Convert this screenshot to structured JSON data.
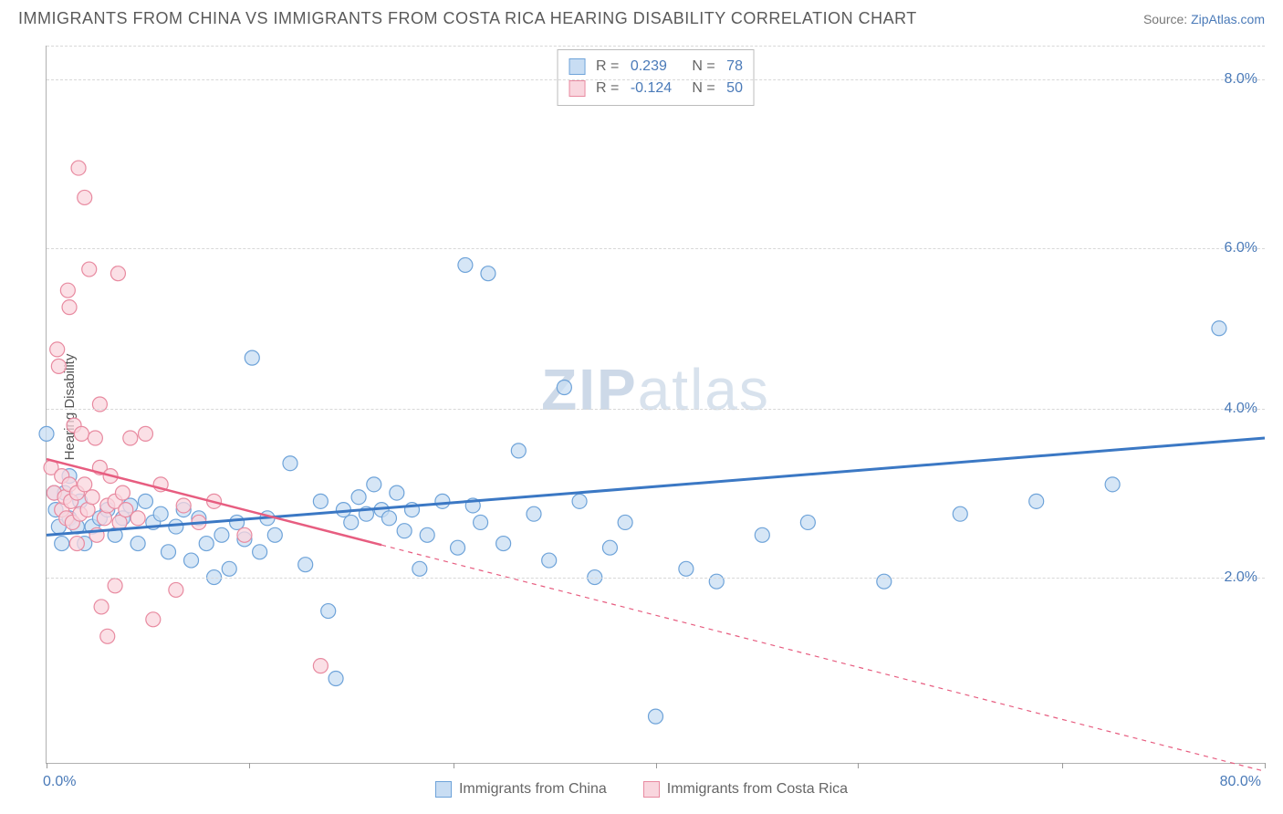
{
  "title": "IMMIGRANTS FROM CHINA VS IMMIGRANTS FROM COSTA RICA HEARING DISABILITY CORRELATION CHART",
  "source_prefix": "Source: ",
  "source_link": "ZipAtlas.com",
  "y_axis_label": "Hearing Disability",
  "watermark": {
    "bold": "ZIP",
    "rest": "atlas"
  },
  "chart": {
    "type": "scatter-with-regression",
    "xlim": [
      0,
      80
    ],
    "ylim": [
      0,
      8.5
    ],
    "x_ticks": [
      0,
      13.3,
      26.7,
      40,
      53.3,
      66.7,
      80
    ],
    "x_tick_labels_shown": {
      "0": "0.0%",
      "80": "80.0%"
    },
    "y_gridlines": [
      2.2,
      4.2,
      6.1,
      8.1
    ],
    "y_tick_labels": {
      "2.2": "2.0%",
      "4.2": "4.0%",
      "6.1": "6.0%",
      "8.1": "8.0%"
    },
    "background_color": "#ffffff",
    "grid_color": "#d8d8d8",
    "axis_color": "#b0b0b0",
    "tick_label_color": "#4a7ab8",
    "marker_radius": 8,
    "marker_stroke_width": 1.2,
    "series": [
      {
        "name": "Immigrants from China",
        "fill": "#c8ddf3",
        "stroke": "#6ea3d9",
        "line_color": "#3b78c4",
        "line_width": 3,
        "dash_after_x": null,
        "R": "0.239",
        "N": "78",
        "regression": {
          "x1": 0,
          "y1": 2.7,
          "x2": 80,
          "y2": 3.85
        },
        "points": [
          [
            0,
            3.9
          ],
          [
            0.5,
            3.2
          ],
          [
            0.6,
            3.0
          ],
          [
            0.8,
            2.8
          ],
          [
            1,
            2.6
          ],
          [
            1.2,
            3.2
          ],
          [
            1.5,
            2.9
          ],
          [
            1.5,
            3.4
          ],
          [
            2,
            2.8
          ],
          [
            2.2,
            3.1
          ],
          [
            2.5,
            2.6
          ],
          [
            3,
            2.8
          ],
          [
            3.5,
            2.9
          ],
          [
            4,
            3.0
          ],
          [
            4.5,
            2.7
          ],
          [
            5,
            2.9
          ],
          [
            5.5,
            3.05
          ],
          [
            6,
            2.6
          ],
          [
            6.5,
            3.1
          ],
          [
            7,
            2.85
          ],
          [
            7.5,
            2.95
          ],
          [
            8,
            2.5
          ],
          [
            8.5,
            2.8
          ],
          [
            9,
            3.0
          ],
          [
            9.5,
            2.4
          ],
          [
            10,
            2.9
          ],
          [
            10.5,
            2.6
          ],
          [
            11,
            2.2
          ],
          [
            11.5,
            2.7
          ],
          [
            12,
            2.3
          ],
          [
            12.5,
            2.85
          ],
          [
            13,
            2.65
          ],
          [
            13.5,
            4.8
          ],
          [
            14,
            2.5
          ],
          [
            14.5,
            2.9
          ],
          [
            15,
            2.7
          ],
          [
            16,
            3.55
          ],
          [
            17,
            2.35
          ],
          [
            18,
            3.1
          ],
          [
            18.5,
            1.8
          ],
          [
            19,
            1.0
          ],
          [
            19.5,
            3.0
          ],
          [
            20,
            2.85
          ],
          [
            20.5,
            3.15
          ],
          [
            21,
            2.95
          ],
          [
            21.5,
            3.3
          ],
          [
            22,
            3.0
          ],
          [
            22.5,
            2.9
          ],
          [
            23,
            3.2
          ],
          [
            23.5,
            2.75
          ],
          [
            24,
            3.0
          ],
          [
            24.5,
            2.3
          ],
          [
            25,
            2.7
          ],
          [
            26,
            3.1
          ],
          [
            27,
            2.55
          ],
          [
            27.5,
            5.9
          ],
          [
            28,
            3.05
          ],
          [
            28.5,
            2.85
          ],
          [
            29,
            5.8
          ],
          [
            30,
            2.6
          ],
          [
            31,
            3.7
          ],
          [
            32,
            2.95
          ],
          [
            33,
            2.4
          ],
          [
            34,
            4.45
          ],
          [
            35,
            3.1
          ],
          [
            36,
            2.2
          ],
          [
            37,
            2.55
          ],
          [
            38,
            2.85
          ],
          [
            40,
            0.55
          ],
          [
            42,
            2.3
          ],
          [
            44,
            2.15
          ],
          [
            47,
            2.7
          ],
          [
            50,
            2.85
          ],
          [
            55,
            2.15
          ],
          [
            60,
            2.95
          ],
          [
            65,
            3.1
          ],
          [
            70,
            3.3
          ],
          [
            77,
            5.15
          ]
        ]
      },
      {
        "name": "Immigrants from Costa Rica",
        "fill": "#f9d6de",
        "stroke": "#e88aa0",
        "line_color": "#e75d80",
        "line_width": 2.5,
        "dash_after_x": 22,
        "R": "-0.124",
        "N": "50",
        "regression": {
          "x1": 0,
          "y1": 3.6,
          "x2": 80,
          "y2": -0.1
        },
        "points": [
          [
            0.3,
            3.5
          ],
          [
            0.5,
            3.2
          ],
          [
            0.7,
            4.9
          ],
          [
            0.8,
            4.7
          ],
          [
            1,
            3.4
          ],
          [
            1,
            3.0
          ],
          [
            1.2,
            3.15
          ],
          [
            1.3,
            2.9
          ],
          [
            1.4,
            5.6
          ],
          [
            1.5,
            3.3
          ],
          [
            1.5,
            5.4
          ],
          [
            1.6,
            3.1
          ],
          [
            1.7,
            2.85
          ],
          [
            1.8,
            4.0
          ],
          [
            2,
            2.6
          ],
          [
            2,
            3.2
          ],
          [
            2.1,
            7.05
          ],
          [
            2.2,
            2.95
          ],
          [
            2.3,
            3.9
          ],
          [
            2.5,
            3.3
          ],
          [
            2.5,
            6.7
          ],
          [
            2.7,
            3.0
          ],
          [
            2.8,
            5.85
          ],
          [
            3,
            3.15
          ],
          [
            3.2,
            3.85
          ],
          [
            3.3,
            2.7
          ],
          [
            3.5,
            3.5
          ],
          [
            3.5,
            4.25
          ],
          [
            3.6,
            1.85
          ],
          [
            3.8,
            2.9
          ],
          [
            4,
            3.05
          ],
          [
            4,
            1.5
          ],
          [
            4.2,
            3.4
          ],
          [
            4.5,
            3.1
          ],
          [
            4.5,
            2.1
          ],
          [
            4.7,
            5.8
          ],
          [
            4.8,
            2.85
          ],
          [
            5,
            3.2
          ],
          [
            5.2,
            3.0
          ],
          [
            5.5,
            3.85
          ],
          [
            6,
            2.9
          ],
          [
            6.5,
            3.9
          ],
          [
            7,
            1.7
          ],
          [
            7.5,
            3.3
          ],
          [
            8.5,
            2.05
          ],
          [
            9,
            3.05
          ],
          [
            10,
            2.85
          ],
          [
            11,
            3.1
          ],
          [
            13,
            2.7
          ],
          [
            18,
            1.15
          ]
        ]
      }
    ]
  },
  "bottom_legend": [
    {
      "label": "Immigrants from China",
      "fill": "#c8ddf3",
      "stroke": "#6ea3d9"
    },
    {
      "label": "Immigrants from Costa Rica",
      "fill": "#f9d6de",
      "stroke": "#e88aa0"
    }
  ]
}
